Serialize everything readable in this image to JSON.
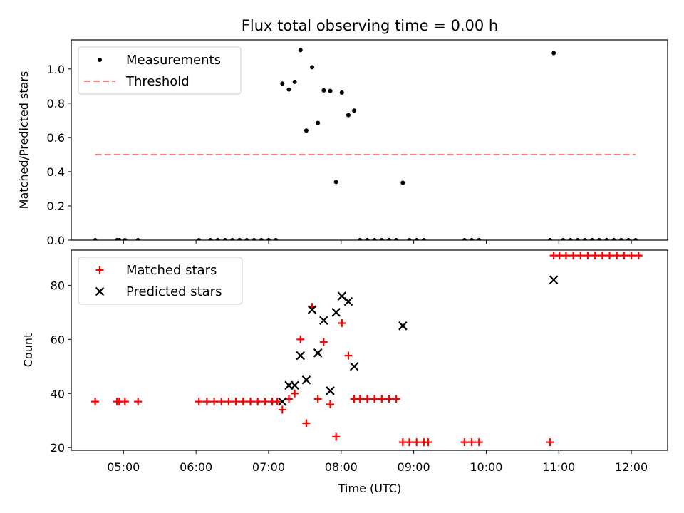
{
  "chart_data": {
    "type": "scatter",
    "title": "Flux total observing time = 0.00 h",
    "xlabel": "Time (UTC)",
    "x_ticks": [
      "05:00",
      "06:00",
      "07:00",
      "08:00",
      "09:00",
      "10:00",
      "11:00",
      "12:00"
    ],
    "x_range_hours": [
      4.28,
      12.5
    ],
    "panels": [
      {
        "ylabel": "Matched/Predicted stars",
        "ylim": [
          0,
          1.17
        ],
        "y_ticks": [
          "0.0",
          "0.2",
          "0.4",
          "0.6",
          "0.8",
          "1.0"
        ],
        "legend_position": "upper-left",
        "series": [
          {
            "name": "Measurements",
            "marker": "dot",
            "color": "#000000",
            "points": [
              [
                4.61,
                0
              ],
              [
                4.91,
                0
              ],
              [
                4.94,
                0
              ],
              [
                5.02,
                0
              ],
              [
                5.2,
                0
              ],
              [
                6.04,
                0
              ],
              [
                6.2,
                0
              ],
              [
                6.3,
                0
              ],
              [
                6.4,
                0
              ],
              [
                6.5,
                0
              ],
              [
                6.6,
                0
              ],
              [
                6.7,
                0
              ],
              [
                6.8,
                0
              ],
              [
                6.9,
                0
              ],
              [
                7.0,
                0
              ],
              [
                7.1,
                0
              ],
              [
                7.19,
                0.915
              ],
              [
                7.28,
                0.88
              ],
              [
                7.36,
                0.925
              ],
              [
                7.44,
                1.11
              ],
              [
                7.52,
                0.64
              ],
              [
                7.6,
                1.01
              ],
              [
                7.68,
                0.685
              ],
              [
                7.76,
                0.875
              ],
              [
                7.85,
                0.872
              ],
              [
                7.93,
                0.34
              ],
              [
                8.01,
                0.862
              ],
              [
                8.1,
                0.73
              ],
              [
                8.18,
                0.757
              ],
              [
                8.26,
                0
              ],
              [
                8.36,
                0
              ],
              [
                8.46,
                0
              ],
              [
                8.56,
                0
              ],
              [
                8.66,
                0
              ],
              [
                8.76,
                0
              ],
              [
                8.85,
                0.335
              ],
              [
                8.94,
                0
              ],
              [
                9.04,
                0
              ],
              [
                9.14,
                0
              ],
              [
                9.7,
                0
              ],
              [
                9.8,
                0
              ],
              [
                9.9,
                0
              ],
              [
                10.88,
                0
              ],
              [
                10.93,
                1.093
              ],
              [
                11.06,
                0
              ],
              [
                11.16,
                0
              ],
              [
                11.26,
                0
              ],
              [
                11.36,
                0
              ],
              [
                11.46,
                0
              ],
              [
                11.56,
                0
              ],
              [
                11.66,
                0
              ],
              [
                11.76,
                0
              ],
              [
                11.86,
                0
              ],
              [
                11.96,
                0
              ],
              [
                12.06,
                0
              ]
            ]
          },
          {
            "name": "Threshold",
            "marker": "dashed-line",
            "color": "#ff7f7f",
            "x": [
              4.61,
              12.06
            ],
            "y": [
              0.5,
              0.5
            ]
          }
        ]
      },
      {
        "ylabel": "Count",
        "ylim": [
          19,
          93
        ],
        "y_ticks": [
          "20",
          "40",
          "60",
          "80"
        ],
        "legend_position": "upper-left",
        "series": [
          {
            "name": "Matched stars",
            "marker": "plus",
            "color": "#ff0000",
            "points": [
              [
                4.61,
                37
              ],
              [
                4.91,
                37
              ],
              [
                4.94,
                37
              ],
              [
                5.02,
                37
              ],
              [
                5.2,
                37
              ],
              [
                6.04,
                37
              ],
              [
                6.15,
                37
              ],
              [
                6.25,
                37
              ],
              [
                6.35,
                37
              ],
              [
                6.45,
                37
              ],
              [
                6.55,
                37
              ],
              [
                6.65,
                37
              ],
              [
                6.75,
                37
              ],
              [
                6.85,
                37
              ],
              [
                6.95,
                37
              ],
              [
                7.05,
                37
              ],
              [
                7.12,
                37
              ],
              [
                7.19,
                34
              ],
              [
                7.28,
                38
              ],
              [
                7.36,
                40
              ],
              [
                7.44,
                60
              ],
              [
                7.52,
                29
              ],
              [
                7.6,
                72
              ],
              [
                7.68,
                38
              ],
              [
                7.76,
                59
              ],
              [
                7.85,
                36
              ],
              [
                7.93,
                24
              ],
              [
                8.01,
                66
              ],
              [
                8.1,
                54
              ],
              [
                8.18,
                38
              ],
              [
                8.26,
                38
              ],
              [
                8.36,
                38
              ],
              [
                8.46,
                38
              ],
              [
                8.56,
                38
              ],
              [
                8.66,
                38
              ],
              [
                8.76,
                38
              ],
              [
                8.85,
                22
              ],
              [
                8.94,
                22
              ],
              [
                9.04,
                22
              ],
              [
                9.14,
                22
              ],
              [
                9.2,
                22
              ],
              [
                9.7,
                22
              ],
              [
                9.8,
                22
              ],
              [
                9.9,
                22
              ],
              [
                10.88,
                22
              ],
              [
                10.93,
                91
              ],
              [
                11.01,
                91
              ],
              [
                11.1,
                91
              ],
              [
                11.2,
                91
              ],
              [
                11.3,
                91
              ],
              [
                11.4,
                91
              ],
              [
                11.5,
                91
              ],
              [
                11.6,
                91
              ],
              [
                11.7,
                91
              ],
              [
                11.8,
                91
              ],
              [
                11.9,
                91
              ],
              [
                12.0,
                91
              ],
              [
                12.1,
                91
              ]
            ]
          },
          {
            "name": "Predicted stars",
            "marker": "x",
            "color": "#000000",
            "points": [
              [
                7.19,
                37
              ],
              [
                7.28,
                43
              ],
              [
                7.36,
                43
              ],
              [
                7.44,
                54
              ],
              [
                7.52,
                45
              ],
              [
                7.6,
                71
              ],
              [
                7.68,
                55
              ],
              [
                7.76,
                67
              ],
              [
                7.85,
                41
              ],
              [
                7.93,
                70
              ],
              [
                8.01,
                76
              ],
              [
                8.1,
                74
              ],
              [
                8.18,
                50
              ],
              [
                8.85,
                65
              ],
              [
                10.93,
                82
              ]
            ]
          }
        ]
      }
    ]
  }
}
